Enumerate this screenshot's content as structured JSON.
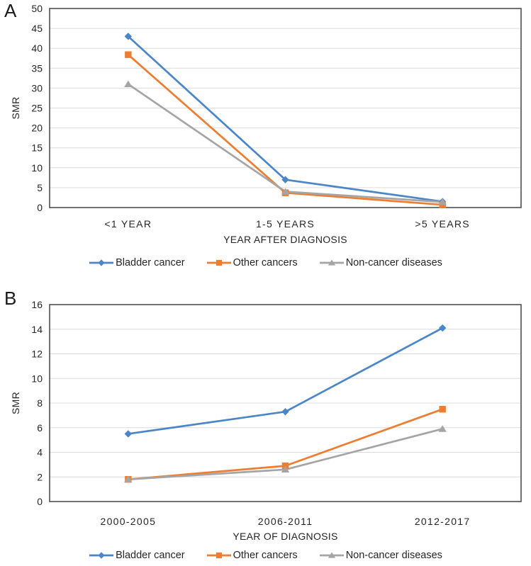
{
  "colors": {
    "grid": "#DCDCDC",
    "plot_border": "#595959",
    "text": "#262626",
    "blue": "#4A86C8",
    "orange": "#ED7D31",
    "gray": "#A5A5A5"
  },
  "chart_data": [
    {
      "panel_label": "A",
      "type": "line",
      "title": "",
      "categories": [
        "<1 YEAR",
        "1-5 YEARS",
        ">5 YEARS"
      ],
      "series": [
        {
          "name": "Bladder cancer",
          "marker": "diamond",
          "color": "#4A86C8",
          "values": [
            43,
            7,
            1.5
          ]
        },
        {
          "name": "Other cancers",
          "marker": "square",
          "color": "#ED7D31",
          "values": [
            38.4,
            3.7,
            0.7
          ]
        },
        {
          "name": "Non-cancer diseases",
          "marker": "triangle",
          "color": "#A5A5A5",
          "values": [
            31,
            4,
            1.4
          ]
        }
      ],
      "xlabel": "YEAR AFTER DIAGNOSIS",
      "ylabel": "SMR",
      "ylim": [
        0,
        50
      ],
      "ystep": 5,
      "grid": true,
      "legend_position": "bottom"
    },
    {
      "panel_label": "B",
      "type": "line",
      "title": "",
      "categories": [
        "2000-2005",
        "2006-2011",
        "2012-2017"
      ],
      "series": [
        {
          "name": "Bladder cancer",
          "marker": "diamond",
          "color": "#4A86C8",
          "values": [
            5.5,
            7.3,
            14.1
          ]
        },
        {
          "name": "Other cancers",
          "marker": "square",
          "color": "#ED7D31",
          "values": [
            1.8,
            2.9,
            7.5
          ]
        },
        {
          "name": "Non-cancer diseases",
          "marker": "triangle",
          "color": "#A5A5A5",
          "values": [
            1.8,
            2.6,
            5.9
          ]
        }
      ],
      "xlabel": "YEAR OF DIAGNOSIS",
      "ylabel": "SMR",
      "ylim": [
        0,
        16
      ],
      "ystep": 2,
      "grid": true,
      "legend_position": "bottom"
    }
  ]
}
